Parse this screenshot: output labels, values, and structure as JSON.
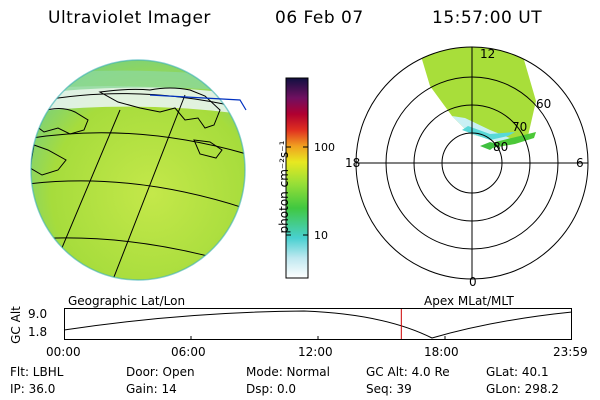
{
  "header": {
    "title": "Ultraviolet Imager",
    "date": "06 Feb 07",
    "time": "15:57:00 UT"
  },
  "colorbar": {
    "unit_label": "photon cm⁻²s⁻¹",
    "ticks": [
      "100",
      "10"
    ]
  },
  "polar_plot": {
    "hour_labels": {
      "top": "12",
      "left": "18",
      "right": "6",
      "bottom": "0"
    },
    "lat_labels": [
      "60",
      "70",
      "80"
    ]
  },
  "panel_labels": {
    "left": "Geographic Lat/Lon",
    "right": "Apex  MLat/MLT"
  },
  "altitude_plot": {
    "ylabel": "GC Alt",
    "yticks": [
      "9.0",
      "1.8"
    ],
    "xticks": [
      "00:00",
      "06:00",
      "12:00",
      "18:00",
      "23:59"
    ],
    "current_time_fraction": 0.664,
    "marker_color": "#cc0000"
  },
  "footer": {
    "row1": [
      "Flt: LBHL",
      "Door: Open",
      "Mode: Normal",
      "GC Alt: 4.0 Re",
      "GLat:  40.1"
    ],
    "row2": [
      "IP: 36.0",
      "Gain: 14",
      "Dsp:    0.0",
      "Seq: 39",
      "GLon: 298.2"
    ]
  },
  "colors": {
    "aurora_green": "#a8de3a",
    "aurora_light": "#d8f0a0",
    "cyan_edge": "#58d8d8"
  }
}
